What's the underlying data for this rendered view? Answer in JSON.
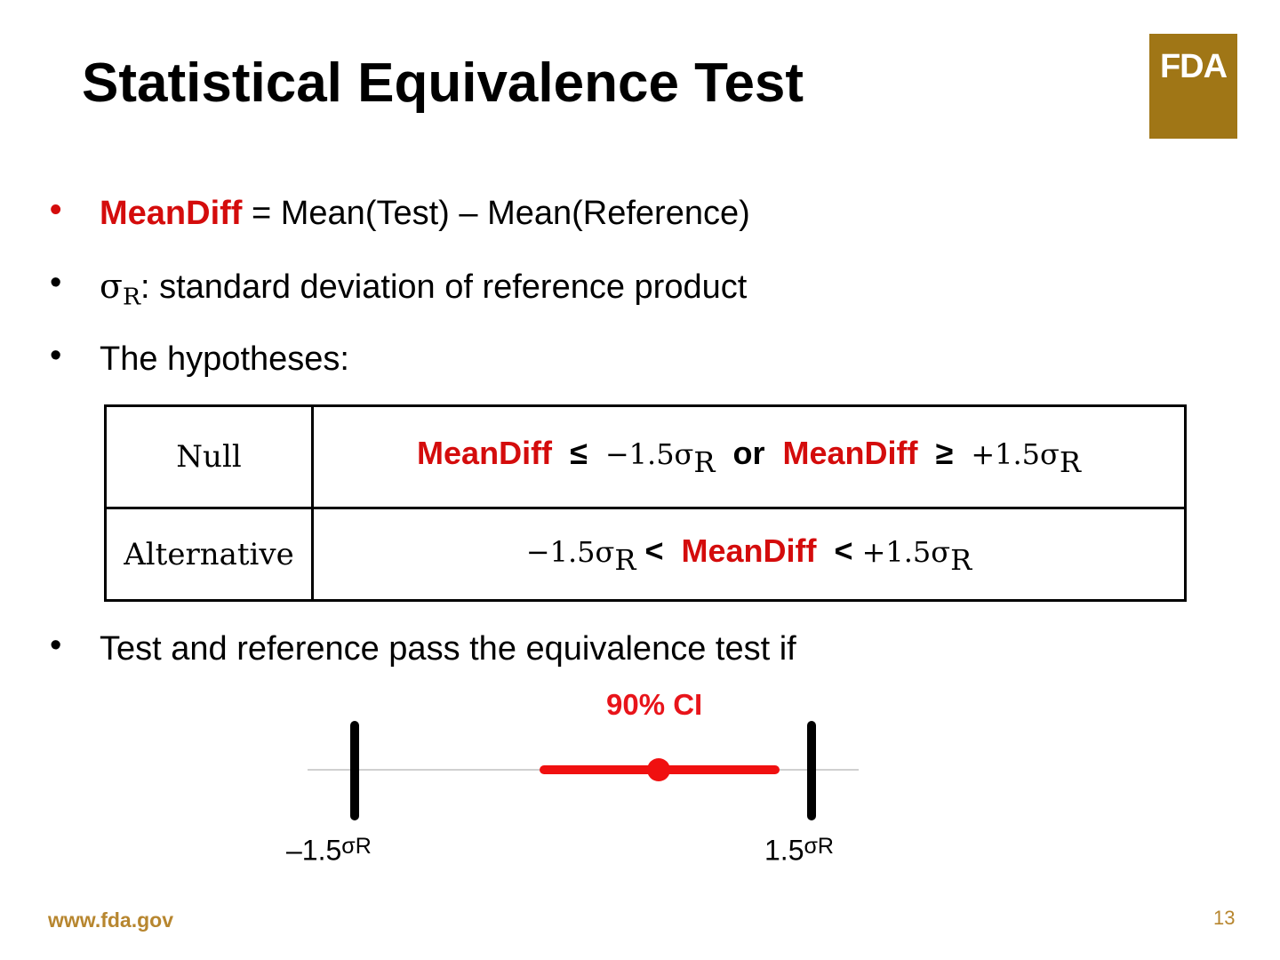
{
  "title": "Statistical Equivalence Test",
  "logo": {
    "text": "FDA",
    "color": "#a07616"
  },
  "bullets": {
    "b1": {
      "term": "MeanDiff",
      "rest": " = Mean(Test) – Mean(Reference)"
    },
    "b2": {
      "symbol": "σ",
      "sub": "R",
      "rest": ": standard deviation of reference product"
    },
    "b3": {
      "text": "The hypotheses:"
    },
    "b4": {
      "text": "Test and reference pass the equivalence test if"
    }
  },
  "table": {
    "null": {
      "label": "Null",
      "term1": "MeanDiff",
      "op1": "≤",
      "val1": "−1.5σ",
      "sub1": "R",
      "conj": "or",
      "term2": "MeanDiff",
      "op2": "≥",
      "val2": "+1.5σ",
      "sub2": "R"
    },
    "alternative": {
      "label": "Alternative",
      "val1": "−1.5σ",
      "sub1": "R",
      "op1": "<",
      "term": "MeanDiff",
      "op2": "<",
      "val2": "+1.5σ",
      "sub2": "R"
    }
  },
  "ci_figure": {
    "label": "90% CI",
    "left_bound": {
      "prefix": "–",
      "value": "1.5",
      "symbol": "σ",
      "sub": "R"
    },
    "right_bound": {
      "value": "1.5",
      "symbol": "σ",
      "sub": "R"
    },
    "colors": {
      "ci": "#f01010",
      "bounds": "#000000",
      "axis": "#d0d0d0",
      "label": "#e8141a"
    }
  },
  "footer": {
    "url": "www.fda.gov",
    "page": "13"
  },
  "colors": {
    "accent_red": "#d40c0c",
    "footer_gold": "#b7862f"
  }
}
